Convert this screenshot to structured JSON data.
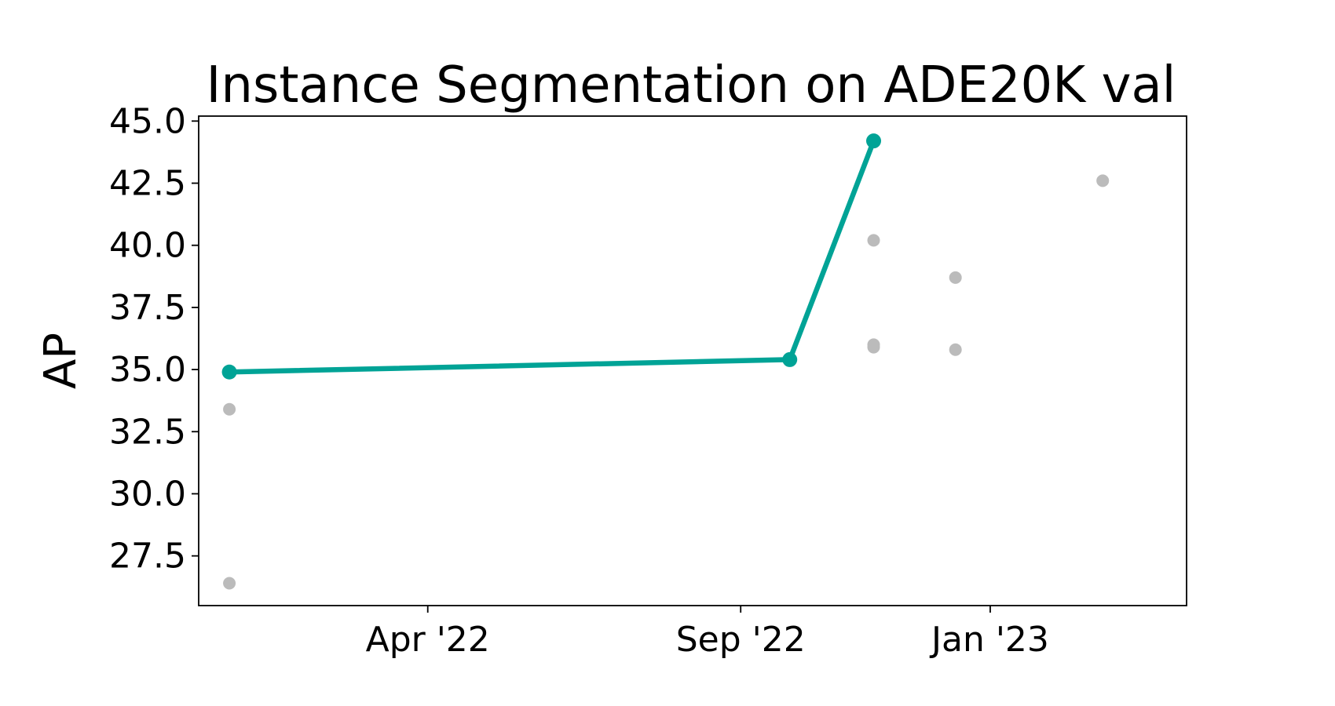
{
  "chart_data": {
    "type": "scatter",
    "title": "Instance Segmentation on ADE20K val",
    "xlabel": "",
    "ylabel": "AP",
    "ylim": [
      25.5,
      45.2
    ],
    "xlim": [
      "2021-12-10",
      "2023-04-07"
    ],
    "grid": false,
    "x_ticks": [
      {
        "date": "2022-04-01",
        "label": "Apr '22"
      },
      {
        "date": "2022-09-01",
        "label": "Sep '22"
      },
      {
        "date": "2023-01-01",
        "label": "Jan '23"
      }
    ],
    "y_ticks": [
      {
        "value": 27.5,
        "label": "27.5"
      },
      {
        "value": 30.0,
        "label": "30.0"
      },
      {
        "value": 32.5,
        "label": "32.5"
      },
      {
        "value": 35.0,
        "label": "35.0"
      },
      {
        "value": 37.5,
        "label": "37.5"
      },
      {
        "value": 40.0,
        "label": "40.0"
      },
      {
        "value": 42.5,
        "label": "42.5"
      },
      {
        "value": 45.0,
        "label": "45.0"
      }
    ],
    "series": [
      {
        "style": "line-markers",
        "color": "#00A396",
        "points": [
          {
            "x": "2021-12-25",
            "y": 34.9
          },
          {
            "x": "2022-09-25",
            "y": 35.4
          },
          {
            "x": "2022-11-05",
            "y": 44.2
          }
        ]
      },
      {
        "style": "markers",
        "color": "#BBBBBB",
        "points": [
          {
            "x": "2021-12-25",
            "y": 33.4
          },
          {
            "x": "2021-12-25",
            "y": 26.4
          },
          {
            "x": "2022-11-05",
            "y": 40.2
          },
          {
            "x": "2022-11-05",
            "y": 36.0
          },
          {
            "x": "2022-11-05",
            "y": 35.9
          },
          {
            "x": "2022-12-15",
            "y": 38.7
          },
          {
            "x": "2022-12-15",
            "y": 35.8
          },
          {
            "x": "2023-02-25",
            "y": 42.6
          }
        ]
      }
    ]
  }
}
